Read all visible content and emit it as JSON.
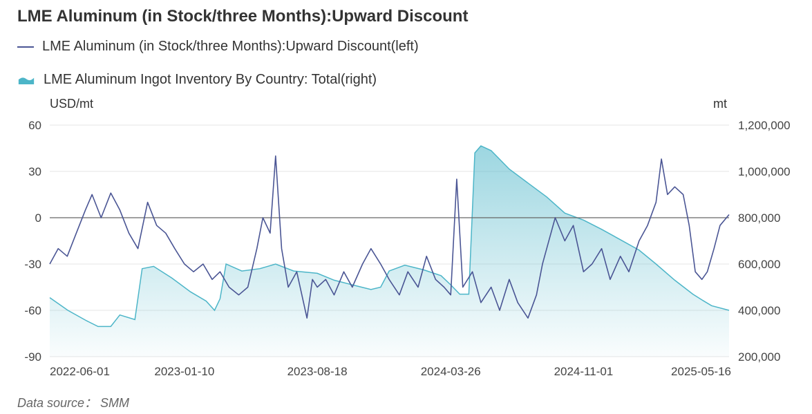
{
  "title": "LME Aluminum (in Stock/three Months):Upward Discount",
  "source": "Data source： SMM",
  "colors": {
    "line": "#4a5594",
    "area": "#4cb5c8",
    "grid": "#e6e6e6",
    "zero": "#666666"
  },
  "chart_data": {
    "type": "line",
    "title": "LME Aluminum (in Stock/three Months):Upward Discount",
    "left_axis": {
      "unit": "USD/mt",
      "range": [
        -90,
        60
      ],
      "ticks": [
        "60",
        "30",
        "0",
        "-30",
        "-60",
        "-90"
      ]
    },
    "right_axis": {
      "unit": "mt",
      "range": [
        200000,
        1200000
      ],
      "ticks": [
        "1,200,000",
        "1,000,000",
        "800,000",
        "600,000",
        "400,000",
        "200,000"
      ]
    },
    "x_ticks": [
      "2022-06-01",
      "2023-01-10",
      "2023-08-18",
      "2024-03-26",
      "2024-11-01",
      "2025-05-16"
    ],
    "x_range": [
      "2022-06-01",
      "2025-06-30"
    ],
    "grid": true,
    "legend_position": "top-left",
    "series": [
      {
        "name": "LME Aluminum (in Stock/three Months):Upward Discount(left)",
        "type": "line",
        "axis": "left",
        "points": [
          [
            "2022-06-01",
            -30
          ],
          [
            "2022-06-15",
            -20
          ],
          [
            "2022-06-30",
            -25
          ],
          [
            "2022-07-15",
            -10
          ],
          [
            "2022-07-30",
            5
          ],
          [
            "2022-08-10",
            15
          ],
          [
            "2022-08-25",
            0
          ],
          [
            "2022-09-10",
            16
          ],
          [
            "2022-09-25",
            5
          ],
          [
            "2022-10-10",
            -10
          ],
          [
            "2022-10-25",
            -20
          ],
          [
            "2022-11-10",
            10
          ],
          [
            "2022-11-25",
            -5
          ],
          [
            "2022-12-10",
            -10
          ],
          [
            "2022-12-25",
            -20
          ],
          [
            "2023-01-10",
            -30
          ],
          [
            "2023-01-25",
            -35
          ],
          [
            "2023-02-10",
            -30
          ],
          [
            "2023-02-25",
            -40
          ],
          [
            "2023-03-10",
            -35
          ],
          [
            "2023-03-25",
            -45
          ],
          [
            "2023-04-10",
            -50
          ],
          [
            "2023-04-25",
            -45
          ],
          [
            "2023-05-10",
            -20
          ],
          [
            "2023-05-20",
            0
          ],
          [
            "2023-06-01",
            -10
          ],
          [
            "2023-06-10",
            40
          ],
          [
            "2023-06-20",
            -20
          ],
          [
            "2023-07-01",
            -45
          ],
          [
            "2023-07-15",
            -35
          ],
          [
            "2023-08-01",
            -65
          ],
          [
            "2023-08-10",
            -40
          ],
          [
            "2023-08-18",
            -45
          ],
          [
            "2023-09-01",
            -40
          ],
          [
            "2023-09-15",
            -50
          ],
          [
            "2023-10-01",
            -35
          ],
          [
            "2023-10-15",
            -45
          ],
          [
            "2023-11-01",
            -30
          ],
          [
            "2023-11-15",
            -20
          ],
          [
            "2023-12-01",
            -30
          ],
          [
            "2023-12-15",
            -40
          ],
          [
            "2024-01-01",
            -50
          ],
          [
            "2024-01-15",
            -35
          ],
          [
            "2024-02-01",
            -45
          ],
          [
            "2024-02-15",
            -25
          ],
          [
            "2024-03-01",
            -40
          ],
          [
            "2024-03-15",
            -45
          ],
          [
            "2024-03-26",
            -50
          ],
          [
            "2024-04-05",
            25
          ],
          [
            "2024-04-15",
            -45
          ],
          [
            "2024-05-01",
            -35
          ],
          [
            "2024-05-15",
            -55
          ],
          [
            "2024-06-01",
            -45
          ],
          [
            "2024-06-15",
            -60
          ],
          [
            "2024-07-01",
            -40
          ],
          [
            "2024-07-15",
            -55
          ],
          [
            "2024-08-01",
            -65
          ],
          [
            "2024-08-15",
            -50
          ],
          [
            "2024-08-25",
            -30
          ],
          [
            "2024-09-01",
            -20
          ],
          [
            "2024-09-15",
            0
          ],
          [
            "2024-10-01",
            -15
          ],
          [
            "2024-10-15",
            -5
          ],
          [
            "2024-11-01",
            -35
          ],
          [
            "2024-11-15",
            -30
          ],
          [
            "2024-12-01",
            -20
          ],
          [
            "2024-12-15",
            -40
          ],
          [
            "2025-01-01",
            -25
          ],
          [
            "2025-01-15",
            -35
          ],
          [
            "2025-02-01",
            -15
          ],
          [
            "2025-02-15",
            -5
          ],
          [
            "2025-03-01",
            10
          ],
          [
            "2025-03-10",
            38
          ],
          [
            "2025-03-20",
            15
          ],
          [
            "2025-04-01",
            20
          ],
          [
            "2025-04-15",
            15
          ],
          [
            "2025-04-25",
            -5
          ],
          [
            "2025-05-05",
            -35
          ],
          [
            "2025-05-16",
            -40
          ],
          [
            "2025-05-25",
            -35
          ],
          [
            "2025-06-05",
            -20
          ],
          [
            "2025-06-15",
            -5
          ],
          [
            "2025-06-30",
            2
          ]
        ]
      },
      {
        "name": "LME Aluminum Ingot Inventory By Country: Total(right)",
        "type": "area",
        "axis": "right",
        "points": [
          [
            "2022-06-01",
            455000
          ],
          [
            "2022-07-01",
            400000
          ],
          [
            "2022-08-01",
            355000
          ],
          [
            "2022-08-20",
            330000
          ],
          [
            "2022-09-10",
            330000
          ],
          [
            "2022-09-25",
            380000
          ],
          [
            "2022-10-20",
            360000
          ],
          [
            "2022-11-01",
            580000
          ],
          [
            "2022-11-20",
            590000
          ],
          [
            "2022-12-20",
            540000
          ],
          [
            "2023-01-20",
            480000
          ],
          [
            "2023-02-15",
            440000
          ],
          [
            "2023-03-01",
            400000
          ],
          [
            "2023-03-10",
            450000
          ],
          [
            "2023-03-20",
            600000
          ],
          [
            "2023-04-15",
            570000
          ],
          [
            "2023-05-15",
            580000
          ],
          [
            "2023-06-10",
            600000
          ],
          [
            "2023-07-10",
            570000
          ],
          [
            "2023-08-18",
            560000
          ],
          [
            "2023-09-15",
            530000
          ],
          [
            "2023-10-15",
            510000
          ],
          [
            "2023-11-15",
            490000
          ],
          [
            "2023-12-01",
            500000
          ],
          [
            "2023-12-15",
            570000
          ],
          [
            "2024-01-10",
            595000
          ],
          [
            "2024-02-10",
            575000
          ],
          [
            "2024-03-10",
            550000
          ],
          [
            "2024-03-26",
            510000
          ],
          [
            "2024-04-10",
            470000
          ],
          [
            "2024-04-25",
            470000
          ],
          [
            "2024-05-05",
            1080000
          ],
          [
            "2024-05-15",
            1110000
          ],
          [
            "2024-06-01",
            1090000
          ],
          [
            "2024-07-01",
            1010000
          ],
          [
            "2024-08-01",
            950000
          ],
          [
            "2024-09-01",
            890000
          ],
          [
            "2024-10-01",
            820000
          ],
          [
            "2024-11-01",
            790000
          ],
          [
            "2024-12-01",
            750000
          ],
          [
            "2025-01-01",
            705000
          ],
          [
            "2025-02-01",
            660000
          ],
          [
            "2025-03-01",
            600000
          ],
          [
            "2025-04-01",
            530000
          ],
          [
            "2025-05-01",
            470000
          ],
          [
            "2025-05-16",
            445000
          ],
          [
            "2025-06-01",
            420000
          ],
          [
            "2025-06-30",
            400000
          ]
        ]
      }
    ]
  }
}
